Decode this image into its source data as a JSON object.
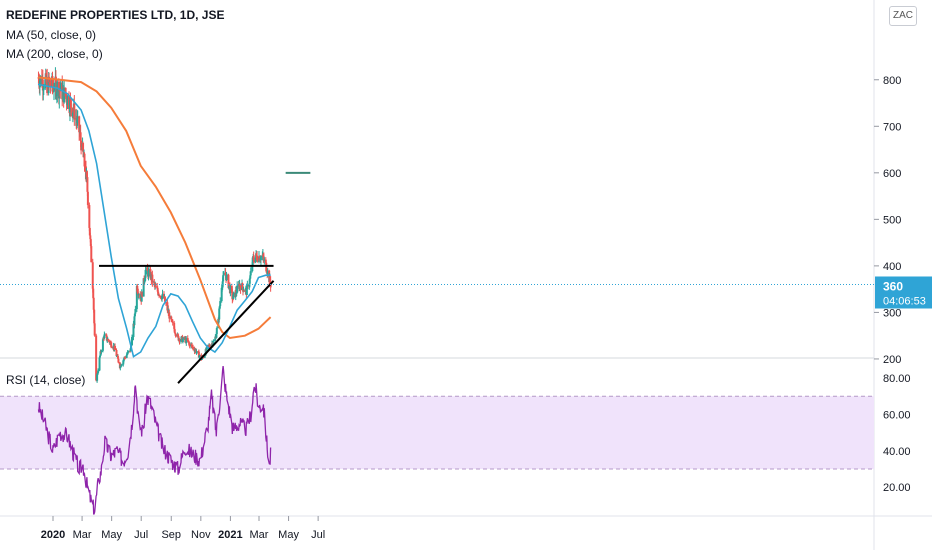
{
  "header": {
    "title": "REDEFINE PROPERTIES LTD, 1D, JSE",
    "ma50_label": "MA (50, close, 0)",
    "ma200_label": "MA (200, close, 0)",
    "currency": "ZAC"
  },
  "price_badge": {
    "value": "360",
    "countdown": "04:06:53"
  },
  "rsi_label": "RSI (14, close)",
  "colors": {
    "up": "#26a69a",
    "down": "#ef5350",
    "ma50": "#2fa4d6",
    "ma200": "#f57c3a",
    "rsi": "#8e24aa",
    "rsi_band": "#f0e3fb",
    "badge": "#2fa4d6",
    "target": "#3b8a78"
  },
  "chart_data": [
    {
      "type": "candlestick",
      "title": "REDEFINE PROPERTIES LTD, 1D, JSE",
      "x_tick_labels": [
        "2020",
        "Mar",
        "May",
        "Jul",
        "Sep",
        "Nov",
        "2021",
        "Mar",
        "May",
        "Jul"
      ],
      "x_tick_dates": [
        "2020-01-01",
        "2020-03-01",
        "2020-05-01",
        "2020-07-01",
        "2020-09-01",
        "2020-11-01",
        "2021-01-01",
        "2021-03-01",
        "2021-05-01",
        "2021-07-01"
      ],
      "y_ticks": [
        200,
        300,
        400,
        500,
        600,
        700,
        800
      ],
      "ylim": [
        105,
        850
      ],
      "price_anchors": [
        [
          "2019-12-01",
          805
        ],
        [
          "2019-12-20",
          790
        ],
        [
          "2020-01-10",
          785
        ],
        [
          "2020-01-31",
          760
        ],
        [
          "2020-02-14",
          730
        ],
        [
          "2020-02-24",
          690
        ],
        [
          "2020-03-03",
          640
        ],
        [
          "2020-03-11",
          580
        ],
        [
          "2020-03-17",
          470
        ],
        [
          "2020-03-24",
          340
        ],
        [
          "2020-03-30",
          150
        ],
        [
          "2020-04-06",
          200
        ],
        [
          "2020-04-15",
          250
        ],
        [
          "2020-04-24",
          240
        ],
        [
          "2020-05-06",
          225
        ],
        [
          "2020-05-18",
          185
        ],
        [
          "2020-05-29",
          205
        ],
        [
          "2020-06-09",
          220
        ],
        [
          "2020-06-17",
          285
        ],
        [
          "2020-06-22",
          355
        ],
        [
          "2020-07-01",
          330
        ],
        [
          "2020-07-10",
          390
        ],
        [
          "2020-07-20",
          380
        ],
        [
          "2020-07-31",
          350
        ],
        [
          "2020-08-17",
          330
        ],
        [
          "2020-09-01",
          280
        ],
        [
          "2020-09-15",
          245
        ],
        [
          "2020-10-01",
          240
        ],
        [
          "2020-10-20",
          220
        ],
        [
          "2020-11-03",
          200
        ],
        [
          "2020-11-16",
          225
        ],
        [
          "2020-11-30",
          240
        ],
        [
          "2020-12-07",
          280
        ],
        [
          "2020-12-14",
          360
        ],
        [
          "2020-12-21",
          385
        ],
        [
          "2021-01-06",
          330
        ],
        [
          "2021-01-20",
          360
        ],
        [
          "2021-02-03",
          345
        ],
        [
          "2021-02-10",
          370
        ],
        [
          "2021-02-17",
          415
        ],
        [
          "2021-02-24",
          420
        ],
        [
          "2021-03-08",
          420
        ],
        [
          "2021-03-17",
          395
        ],
        [
          "2021-03-25",
          360
        ]
      ],
      "ma50_anchors": [
        [
          "2019-12-01",
          790
        ],
        [
          "2020-01-10",
          782
        ],
        [
          "2020-01-31",
          770
        ],
        [
          "2020-02-28",
          735
        ],
        [
          "2020-03-15",
          690
        ],
        [
          "2020-03-31",
          620
        ],
        [
          "2020-04-15",
          520
        ],
        [
          "2020-04-30",
          420
        ],
        [
          "2020-05-15",
          330
        ],
        [
          "2020-06-01",
          265
        ],
        [
          "2020-06-15",
          205
        ],
        [
          "2020-06-30",
          215
        ],
        [
          "2020-07-15",
          245
        ],
        [
          "2020-07-31",
          270
        ],
        [
          "2020-08-15",
          315
        ],
        [
          "2020-08-31",
          340
        ],
        [
          "2020-09-15",
          335
        ],
        [
          "2020-09-30",
          315
        ],
        [
          "2020-10-15",
          280
        ],
        [
          "2020-10-31",
          245
        ],
        [
          "2020-11-15",
          225
        ],
        [
          "2020-11-30",
          215
        ],
        [
          "2020-12-15",
          235
        ],
        [
          "2020-12-31",
          270
        ],
        [
          "2021-01-15",
          305
        ],
        [
          "2021-01-31",
          325
        ],
        [
          "2021-02-15",
          345
        ],
        [
          "2021-02-28",
          375
        ],
        [
          "2021-03-15",
          380
        ],
        [
          "2021-03-25",
          380
        ]
      ],
      "ma200_anchors": [
        [
          "2019-12-01",
          805
        ],
        [
          "2020-01-15",
          800
        ],
        [
          "2020-02-28",
          795
        ],
        [
          "2020-03-31",
          775
        ],
        [
          "2020-04-30",
          740
        ],
        [
          "2020-05-31",
          690
        ],
        [
          "2020-06-30",
          615
        ],
        [
          "2020-07-31",
          570
        ],
        [
          "2020-08-31",
          515
        ],
        [
          "2020-09-30",
          450
        ],
        [
          "2020-10-31",
          370
        ],
        [
          "2020-11-30",
          285
        ],
        [
          "2020-12-15",
          258
        ],
        [
          "2020-12-31",
          245
        ],
        [
          "2021-01-31",
          250
        ],
        [
          "2021-02-28",
          265
        ],
        [
          "2021-03-15",
          280
        ],
        [
          "2021-03-25",
          290
        ]
      ],
      "last_price": 360,
      "drawings": [
        {
          "name": "resistance",
          "from": [
            "2020-04-05",
            400
          ],
          "to": [
            "2021-03-31",
            400
          ]
        },
        {
          "name": "support-trendline",
          "from": [
            "2020-09-15",
            148
          ],
          "to": [
            "2021-03-31",
            368
          ]
        },
        {
          "name": "target",
          "from": [
            "2021-04-25",
            600
          ],
          "to": [
            "2021-06-15",
            600
          ]
        }
      ]
    },
    {
      "type": "line",
      "title": "RSI (14, close)",
      "y_ticks": [
        20,
        40,
        60,
        80
      ],
      "ylim": [
        5,
        88
      ],
      "bands": [
        30,
        70
      ],
      "rsi_anchors": [
        [
          "2019-12-01",
          65
        ],
        [
          "2019-12-15",
          55
        ],
        [
          "2020-01-01",
          40
        ],
        [
          "2020-01-15",
          50
        ],
        [
          "2020-01-31",
          48
        ],
        [
          "2020-02-10",
          40
        ],
        [
          "2020-02-24",
          30
        ],
        [
          "2020-03-03",
          32
        ],
        [
          "2020-03-12",
          20
        ],
        [
          "2020-03-20",
          12
        ],
        [
          "2020-03-27",
          7
        ],
        [
          "2020-04-03",
          22
        ],
        [
          "2020-04-10",
          30
        ],
        [
          "2020-04-17",
          45
        ],
        [
          "2020-04-30",
          37
        ],
        [
          "2020-05-12",
          40
        ],
        [
          "2020-05-25",
          34
        ],
        [
          "2020-06-04",
          40
        ],
        [
          "2020-06-12",
          55
        ],
        [
          "2020-06-19",
          78
        ],
        [
          "2020-06-26",
          55
        ],
        [
          "2020-07-05",
          50
        ],
        [
          "2020-07-12",
          70
        ],
        [
          "2020-07-20",
          66
        ],
        [
          "2020-07-31",
          55
        ],
        [
          "2020-08-14",
          42
        ],
        [
          "2020-08-31",
          35
        ],
        [
          "2020-09-15",
          30
        ],
        [
          "2020-09-30",
          42
        ],
        [
          "2020-10-15",
          38
        ],
        [
          "2020-10-31",
          35
        ],
        [
          "2020-11-16",
          55
        ],
        [
          "2020-11-23",
          70
        ],
        [
          "2020-12-03",
          50
        ],
        [
          "2020-12-12",
          72
        ],
        [
          "2020-12-17",
          85
        ],
        [
          "2020-12-23",
          72
        ],
        [
          "2021-01-06",
          52
        ],
        [
          "2021-01-20",
          55
        ],
        [
          "2021-02-03",
          52
        ],
        [
          "2021-02-12",
          60
        ],
        [
          "2021-02-20",
          78
        ],
        [
          "2021-02-28",
          64
        ],
        [
          "2021-03-10",
          65
        ],
        [
          "2021-03-18",
          42
        ],
        [
          "2021-03-23",
          32
        ],
        [
          "2021-03-25",
          38
        ]
      ]
    }
  ]
}
